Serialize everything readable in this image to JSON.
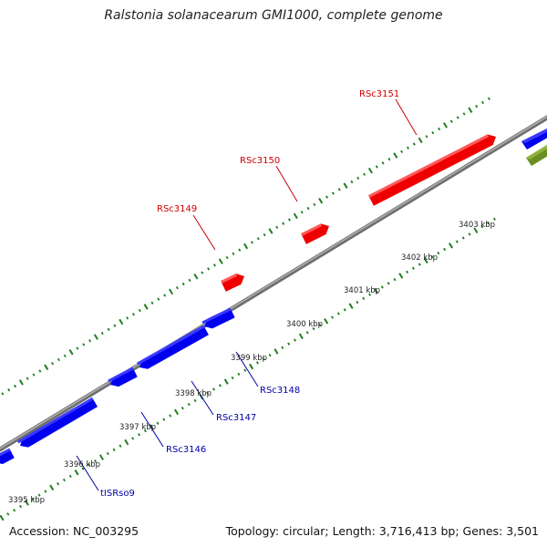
{
  "title": "Ralstonia solanacearum GMI1000, complete genome",
  "footer": {
    "accession": "Accession: NC_003295",
    "summary": "Topology: circular; Length: 3,716,413 bp; Genes: 3,501"
  },
  "colors": {
    "backbone": "#8c8c8c",
    "forward_gene": "#ff0000",
    "reverse_gene": "#0000ff",
    "other_feature": "#6b8e23",
    "forward_label": "#cc0000",
    "reverse_label": "#0000aa",
    "tick": "#1e7d1e",
    "kbp_label": "#222222"
  },
  "ruler": {
    "unit": "kbp",
    "labels": [
      "3395 kbp",
      "3396 kbp",
      "3397 kbp",
      "3398 kbp",
      "3399 kbp",
      "3400 kbp",
      "3401 kbp",
      "3402 kbp",
      "3403 kbp"
    ]
  },
  "genes": [
    {
      "name": "RSc3149",
      "strand": "forward"
    },
    {
      "name": "RSc3150",
      "strand": "forward"
    },
    {
      "name": "RSc3151",
      "strand": "forward"
    },
    {
      "name": "tISRso9",
      "strand": "reverse"
    },
    {
      "name": "RSc3146",
      "strand": "reverse"
    },
    {
      "name": "RSc3147",
      "strand": "reverse"
    },
    {
      "name": "RSc3148",
      "strand": "reverse"
    }
  ]
}
